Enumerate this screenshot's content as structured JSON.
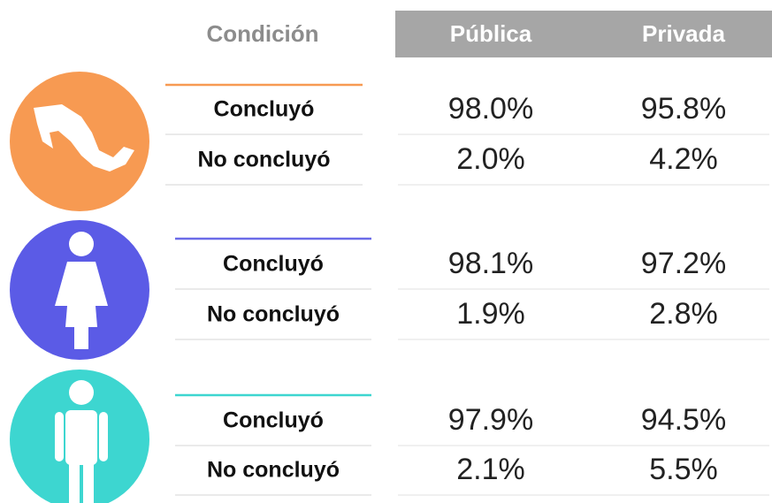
{
  "header": {
    "condition": "Condición",
    "columns": [
      "Pública",
      "Privada"
    ]
  },
  "groups": [
    {
      "rows": [
        {
          "label": "Concluyó",
          "values": [
            "98.0%",
            "95.8%"
          ]
        },
        {
          "label": "No concluyó",
          "values": [
            "2.0%",
            "4.2%"
          ]
        }
      ]
    },
    {
      "rows": [
        {
          "label": "Concluyó",
          "values": [
            "98.1%",
            "97.2%"
          ]
        },
        {
          "label": "No concluyó",
          "values": [
            "1.9%",
            "2.8%"
          ]
        }
      ]
    },
    {
      "rows": [
        {
          "label": "Concluyó",
          "values": [
            "97.9%",
            "94.5%"
          ]
        },
        {
          "label": "No concluyó",
          "values": [
            "2.1%",
            "5.5%"
          ]
        }
      ]
    }
  ]
}
